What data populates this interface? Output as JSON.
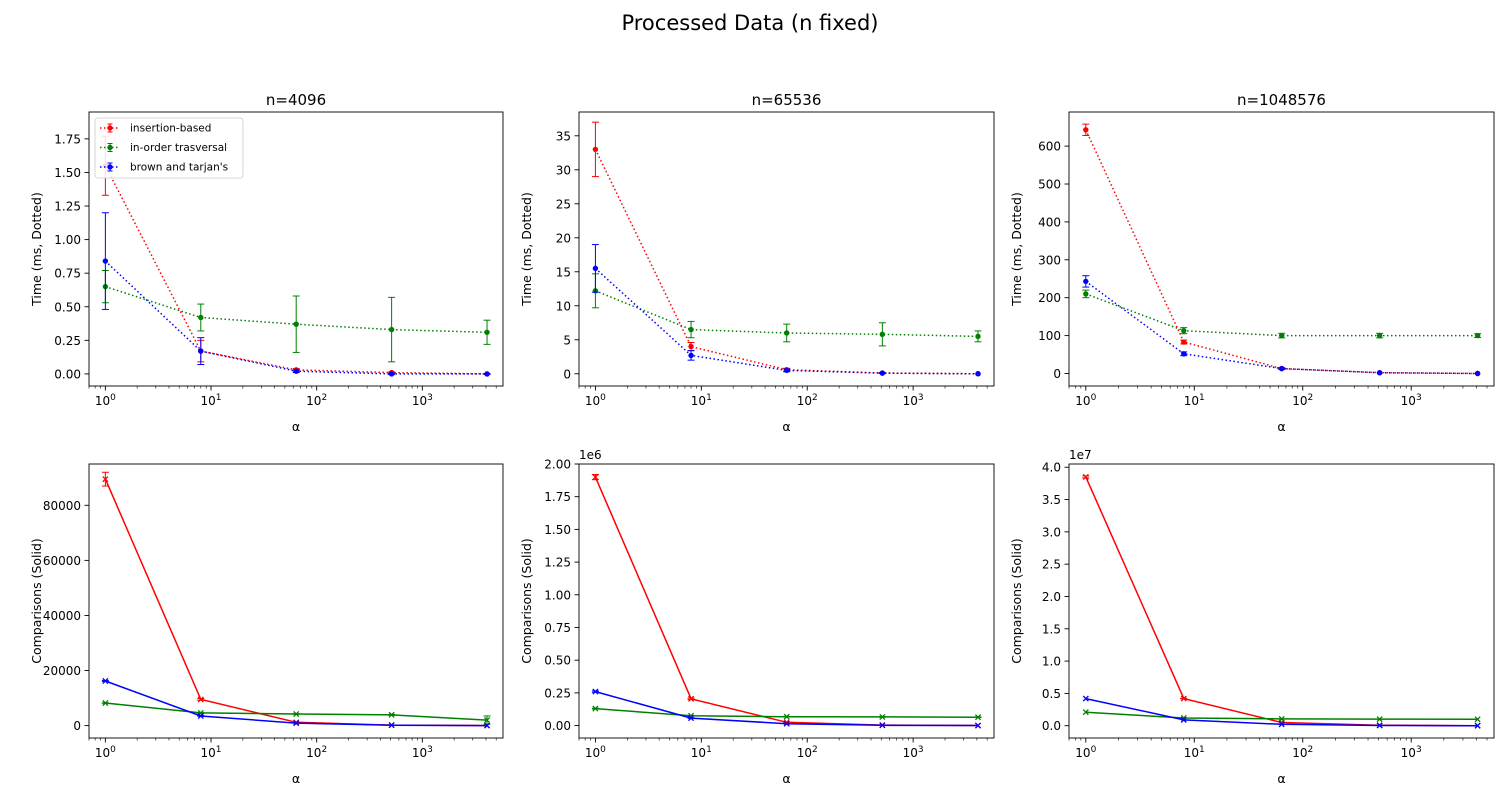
{
  "figure": {
    "title": "Processed Data (n fixed)"
  },
  "colors": {
    "insertion": "#ff0000",
    "inorder": "#008000",
    "brown": "#0000ff"
  },
  "chart_data": [
    {
      "type": "line",
      "title": "n=4096",
      "xlabel": "α",
      "ylabel": "Time (ms, Dotted)",
      "xscale": "log",
      "xlim": [
        0.7,
        5800
      ],
      "ylim": [
        -0.09,
        1.95
      ],
      "yticks": [
        "0.00",
        "0.25",
        "0.50",
        "0.75",
        "1.00",
        "1.25",
        "1.50",
        "1.75"
      ],
      "ytick_values": [
        0,
        0.25,
        0.5,
        0.75,
        1.0,
        1.25,
        1.5,
        1.75
      ],
      "x": [
        1,
        8,
        64,
        512,
        4096
      ],
      "line_style": "dotted",
      "marker": "dot",
      "legend": "top-left",
      "series": [
        {
          "name": "insertion-based",
          "color": "#ff0000",
          "values": [
            1.55,
            0.17,
            0.03,
            0.01,
            0.0
          ],
          "errors": [
            0.22,
            0.08,
            0.01,
            0.005,
            0.002
          ]
        },
        {
          "name": "in-order trasversal",
          "color": "#008000",
          "values": [
            0.65,
            0.42,
            0.37,
            0.33,
            0.31
          ],
          "errors": [
            0.12,
            0.1,
            0.21,
            0.24,
            0.09
          ]
        },
        {
          "name": "brown and tarjan's",
          "color": "#0000ff",
          "values": [
            0.84,
            0.17,
            0.02,
            0.0,
            0.0
          ],
          "errors": [
            0.36,
            0.1,
            0.01,
            0.005,
            0.002
          ]
        }
      ]
    },
    {
      "type": "line",
      "title": "n=65536",
      "xlabel": "α",
      "ylabel": "Time (ms, Dotted)",
      "xscale": "log",
      "xlim": [
        0.7,
        5800
      ],
      "ylim": [
        -1.8,
        38.5
      ],
      "yticks": [
        "0",
        "5",
        "10",
        "15",
        "20",
        "25",
        "30",
        "35"
      ],
      "ytick_values": [
        0,
        5,
        10,
        15,
        20,
        25,
        30,
        35
      ],
      "x": [
        1,
        8,
        64,
        512,
        4096
      ],
      "line_style": "dotted",
      "marker": "dot",
      "series": [
        {
          "name": "insertion-based",
          "color": "#ff0000",
          "values": [
            33.0,
            4.0,
            0.6,
            0.1,
            0.0
          ],
          "errors": [
            4.0,
            0.6,
            0.2,
            0.05,
            0.02
          ]
        },
        {
          "name": "in-order trasversal",
          "color": "#008000",
          "values": [
            12.2,
            6.5,
            6.0,
            5.8,
            5.5
          ],
          "errors": [
            2.5,
            1.2,
            1.3,
            1.7,
            0.8
          ]
        },
        {
          "name": "brown and tarjan's",
          "color": "#0000ff",
          "values": [
            15.5,
            2.7,
            0.5,
            0.1,
            0.0
          ],
          "errors": [
            3.5,
            0.7,
            0.2,
            0.05,
            0.02
          ]
        }
      ]
    },
    {
      "type": "line",
      "title": "n=1048576",
      "xlabel": "α",
      "ylabel": "Time (ms, Dotted)",
      "xscale": "log",
      "xlim": [
        0.7,
        5800
      ],
      "ylim": [
        -33,
        690
      ],
      "yticks": [
        "0",
        "100",
        "200",
        "300",
        "400",
        "500",
        "600"
      ],
      "ytick_values": [
        0,
        100,
        200,
        300,
        400,
        500,
        600
      ],
      "x": [
        1,
        8,
        64,
        512,
        4096
      ],
      "line_style": "dotted",
      "marker": "dot",
      "series": [
        {
          "name": "insertion-based",
          "color": "#ff0000",
          "values": [
            643,
            83,
            13,
            2,
            0
          ],
          "errors": [
            15,
            5,
            2,
            0.5,
            0.2
          ]
        },
        {
          "name": "in-order trasversal",
          "color": "#008000",
          "values": [
            210,
            113,
            100,
            100,
            100
          ],
          "errors": [
            10,
            8,
            6,
            6,
            5
          ]
        },
        {
          "name": "brown and tarjan's",
          "color": "#0000ff",
          "values": [
            243,
            52,
            13,
            2,
            0
          ],
          "errors": [
            15,
            5,
            2,
            0.5,
            0.2
          ]
        }
      ]
    },
    {
      "type": "line",
      "title": "",
      "xlabel": "α",
      "ylabel": "Comparisons (Solid)",
      "xscale": "log",
      "xlim": [
        0.7,
        5800
      ],
      "ylim": [
        -4500,
        95000
      ],
      "yticks": [
        "0",
        "20000",
        "40000",
        "60000",
        "80000"
      ],
      "ytick_values": [
        0,
        20000,
        40000,
        60000,
        80000
      ],
      "x": [
        1,
        8,
        64,
        512,
        4096
      ],
      "line_style": "solid",
      "marker": "x",
      "series": [
        {
          "name": "insertion-based",
          "color": "#ff0000",
          "values": [
            89500,
            9500,
            1200,
            200,
            30
          ],
          "errors": [
            2500,
            300,
            100,
            50,
            10
          ]
        },
        {
          "name": "in-order trasversal",
          "color": "#008000",
          "values": [
            8200,
            4600,
            4200,
            3900,
            2000
          ],
          "errors": [
            100,
            100,
            100,
            150,
            1500
          ]
        },
        {
          "name": "brown and tarjan's",
          "color": "#0000ff",
          "values": [
            16200,
            3500,
            900,
            150,
            20
          ],
          "errors": [
            200,
            100,
            50,
            20,
            5
          ]
        }
      ]
    },
    {
      "type": "line",
      "title": "",
      "xlabel": "α",
      "ylabel": "Comparisons (Solid)",
      "xscale": "log",
      "xlim": [
        0.7,
        5800
      ],
      "ylim": [
        -95000,
        2000000
      ],
      "offset_label": "1e6",
      "yticks": [
        "0.00",
        "0.25",
        "0.50",
        "0.75",
        "1.00",
        "1.25",
        "1.50",
        "1.75",
        "2.00"
      ],
      "ytick_values": [
        0,
        250000,
        500000,
        750000,
        1000000,
        1250000,
        1500000,
        1750000,
        2000000
      ],
      "x": [
        1,
        8,
        64,
        512,
        4096
      ],
      "line_style": "solid",
      "marker": "x",
      "series": [
        {
          "name": "insertion-based",
          "color": "#ff0000",
          "values": [
            1900000,
            205000,
            25000,
            4000,
            500
          ],
          "errors": [
            20000,
            5000,
            2000,
            500,
            100
          ]
        },
        {
          "name": "in-order trasversal",
          "color": "#008000",
          "values": [
            130000,
            75000,
            68000,
            66000,
            64000
          ],
          "errors": [
            3000,
            2000,
            2000,
            2000,
            2000
          ]
        },
        {
          "name": "brown and tarjan's",
          "color": "#0000ff",
          "values": [
            260000,
            57000,
            14000,
            2000,
            200
          ],
          "errors": [
            5000,
            2000,
            1000,
            200,
            50
          ]
        }
      ]
    },
    {
      "type": "line",
      "title": "",
      "xlabel": "α",
      "ylabel": "Comparisons (Solid)",
      "xscale": "log",
      "xlim": [
        0.7,
        5800
      ],
      "ylim": [
        -1900000,
        40500000
      ],
      "offset_label": "1e7",
      "yticks": [
        "0.0",
        "0.5",
        "1.0",
        "1.5",
        "2.0",
        "2.5",
        "3.0",
        "3.5",
        "4.0"
      ],
      "ytick_values": [
        0,
        5000000,
        10000000,
        15000000,
        20000000,
        25000000,
        30000000,
        35000000,
        40000000
      ],
      "x": [
        1,
        8,
        64,
        512,
        4096
      ],
      "line_style": "solid",
      "marker": "x",
      "series": [
        {
          "name": "insertion-based",
          "color": "#ff0000",
          "values": [
            38500000,
            4200000,
            500000,
            80000,
            10000
          ],
          "errors": [
            150000,
            50000,
            20000,
            5000,
            1000
          ]
        },
        {
          "name": "in-order trasversal",
          "color": "#008000",
          "values": [
            2100000,
            1200000,
            1050000,
            1020000,
            1000000
          ],
          "errors": [
            30000,
            20000,
            20000,
            20000,
            20000
          ]
        },
        {
          "name": "brown and tarjan's",
          "color": "#0000ff",
          "values": [
            4200000,
            900000,
            220000,
            40000,
            5000
          ],
          "errors": [
            30000,
            20000,
            10000,
            2000,
            500
          ]
        }
      ]
    }
  ]
}
